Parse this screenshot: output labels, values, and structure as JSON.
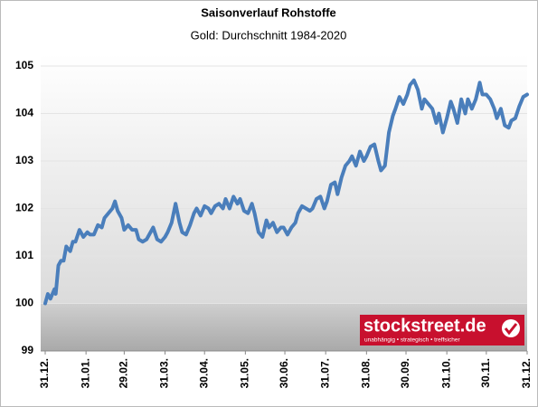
{
  "chart_data": {
    "type": "line",
    "title": "Saisonverlauf Rohstoffe",
    "subtitle": "Gold: Durchschnitt 1984-2020",
    "logo": {
      "name": "stockstreet.de",
      "tagline": "unabhängig • strategisch • treffsicher"
    },
    "grid": true,
    "ylim": [
      99,
      105
    ],
    "yticks": [
      99,
      100,
      101,
      102,
      103,
      104,
      105
    ],
    "xlim": [
      0,
      366
    ],
    "xticks": [
      {
        "value": 0,
        "label": "31.12."
      },
      {
        "value": 31,
        "label": "31.01."
      },
      {
        "value": 60,
        "label": "29.02."
      },
      {
        "value": 91,
        "label": "31.03."
      },
      {
        "value": 121,
        "label": "30.04."
      },
      {
        "value": 152,
        "label": "31.05."
      },
      {
        "value": 182,
        "label": "30.06."
      },
      {
        "value": 213,
        "label": "31.07."
      },
      {
        "value": 244,
        "label": "31.08."
      },
      {
        "value": 274,
        "label": "30.09."
      },
      {
        "value": 305,
        "label": "31.10."
      },
      {
        "value": 335,
        "label": "30.11."
      },
      {
        "value": 366,
        "label": "31.12."
      }
    ],
    "x": [
      0,
      2,
      4,
      7,
      8,
      10,
      12,
      14,
      16,
      19,
      21,
      23,
      26,
      29,
      32,
      34,
      37,
      40,
      43,
      45,
      48,
      51,
      53,
      55,
      58,
      60,
      63,
      66,
      69,
      71,
      74,
      77,
      80,
      82,
      85,
      88,
      91,
      93,
      96,
      99,
      102,
      104,
      107,
      110,
      113,
      115,
      118,
      121,
      124,
      126,
      129,
      132,
      135,
      137,
      140,
      143,
      146,
      148,
      151,
      154,
      157,
      159,
      162,
      165,
      168,
      170,
      173,
      176,
      179,
      181,
      184,
      187,
      190,
      192,
      195,
      198,
      201,
      203,
      206,
      209,
      212,
      214,
      217,
      220,
      222,
      225,
      228,
      231,
      233,
      236,
      239,
      242,
      244,
      247,
      250,
      253,
      255,
      258,
      261,
      264,
      266,
      269,
      272,
      275,
      277,
      280,
      283,
      286,
      288,
      291,
      294,
      297,
      299,
      302,
      305,
      308,
      310,
      313,
      316,
      319,
      321,
      324,
      327,
      330,
      332,
      335,
      338,
      341,
      343,
      346,
      349,
      352,
      354,
      357,
      360,
      363,
      366
    ],
    "series": [
      {
        "color": "#4a7ebb",
        "values": [
          100.0,
          100.2,
          100.1,
          100.3,
          100.2,
          100.8,
          100.9,
          100.9,
          101.2,
          101.1,
          101.3,
          101.3,
          101.55,
          101.4,
          101.5,
          101.45,
          101.45,
          101.65,
          101.6,
          101.8,
          101.9,
          102.0,
          102.15,
          101.95,
          101.8,
          101.55,
          101.65,
          101.55,
          101.55,
          101.35,
          101.3,
          101.35,
          101.5,
          101.6,
          101.35,
          101.3,
          101.4,
          101.5,
          101.7,
          102.1,
          101.7,
          101.5,
          101.45,
          101.65,
          101.9,
          102.0,
          101.85,
          102.05,
          102.0,
          101.9,
          102.05,
          102.1,
          102.0,
          102.2,
          102.0,
          102.25,
          102.1,
          102.2,
          101.95,
          101.9,
          102.1,
          101.9,
          101.5,
          101.4,
          101.75,
          101.6,
          101.7,
          101.5,
          101.6,
          101.6,
          101.45,
          101.6,
          101.7,
          101.9,
          102.05,
          102.0,
          101.95,
          102.0,
          102.2,
          102.25,
          102.0,
          102.15,
          102.5,
          102.55,
          102.3,
          102.65,
          102.9,
          103.0,
          103.1,
          102.9,
          103.2,
          103.0,
          103.1,
          103.3,
          103.35,
          103.0,
          102.8,
          102.9,
          103.6,
          103.95,
          104.1,
          104.35,
          104.2,
          104.4,
          104.6,
          104.7,
          104.5,
          104.1,
          104.3,
          104.2,
          104.1,
          103.8,
          104.0,
          103.6,
          103.9,
          104.25,
          104.1,
          103.8,
          104.3,
          104.0,
          104.3,
          104.1,
          104.3,
          104.65,
          104.4,
          104.4,
          104.3,
          104.1,
          103.9,
          104.1,
          103.75,
          103.7,
          103.85,
          103.9,
          104.15,
          104.35,
          104.4
        ]
      }
    ]
  }
}
